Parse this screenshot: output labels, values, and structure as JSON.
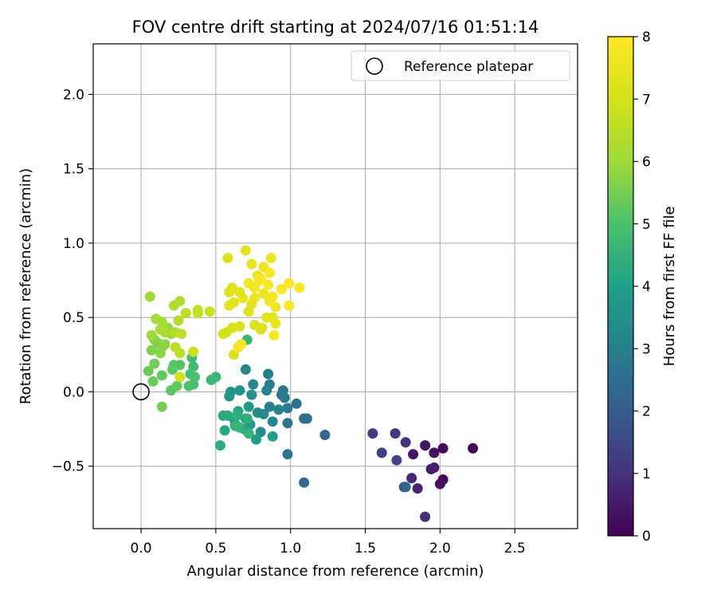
{
  "chart_data": {
    "type": "scatter",
    "title": "FOV centre drift starting at 2024/07/16 01:51:14",
    "xlabel": "Angular distance from reference (arcmin)",
    "ylabel": "Rotation from reference (arcmin)",
    "xlim": [
      -0.32,
      2.92
    ],
    "ylim": [
      -0.92,
      2.34
    ],
    "xticks": [
      0.0,
      0.5,
      1.0,
      1.5,
      2.0,
      2.5
    ],
    "xtick_labels": [
      "0.0",
      "0.5",
      "1.0",
      "1.5",
      "2.0",
      "2.5"
    ],
    "yticks": [
      -0.5,
      0.0,
      0.5,
      1.0,
      1.5,
      2.0
    ],
    "ytick_labels": [
      "−0.5",
      "0.0",
      "0.5",
      "1.0",
      "1.5",
      "2.0"
    ],
    "grid": true,
    "legend": {
      "placement": "top-right",
      "entries": [
        "Reference platepar"
      ]
    },
    "reference_point": {
      "x": 0.0,
      "y": 0.0,
      "marker": "open-circle"
    },
    "colorbar": {
      "label": "Hours from first FF file",
      "colormap": "viridis",
      "range": [
        0,
        8
      ],
      "ticks": [
        0,
        1,
        2,
        3,
        4,
        5,
        6,
        7,
        8
      ],
      "tick_labels": [
        "0",
        "1",
        "2",
        "3",
        "4",
        "5",
        "6",
        "7",
        "8"
      ]
    },
    "points": [
      {
        "x": 2.22,
        "y": -0.38,
        "h": 0.1
      },
      {
        "x": 2.02,
        "y": -0.38,
        "h": 0.2
      },
      {
        "x": 1.96,
        "y": -0.41,
        "h": 0.3
      },
      {
        "x": 1.9,
        "y": -0.36,
        "h": 0.4
      },
      {
        "x": 2.02,
        "y": -0.59,
        "h": 0.2
      },
      {
        "x": 2.0,
        "y": -0.62,
        "h": 0.3
      },
      {
        "x": 1.96,
        "y": -0.51,
        "h": 0.5
      },
      {
        "x": 1.94,
        "y": -0.52,
        "h": 0.6
      },
      {
        "x": 1.82,
        "y": -0.42,
        "h": 0.4
      },
      {
        "x": 1.85,
        "y": -0.65,
        "h": 0.7
      },
      {
        "x": 1.81,
        "y": -0.58,
        "h": 0.8
      },
      {
        "x": 1.9,
        "y": -0.84,
        "h": 0.9
      },
      {
        "x": 1.77,
        "y": -0.34,
        "h": 1.0
      },
      {
        "x": 1.7,
        "y": -0.28,
        "h": 1.1
      },
      {
        "x": 1.55,
        "y": -0.28,
        "h": 1.2
      },
      {
        "x": 1.61,
        "y": -0.41,
        "h": 1.3
      },
      {
        "x": 1.71,
        "y": -0.46,
        "h": 1.4
      },
      {
        "x": 1.76,
        "y": -0.64,
        "h": 1.5
      },
      {
        "x": 1.77,
        "y": -0.64,
        "h": 2.3
      },
      {
        "x": 1.23,
        "y": -0.29,
        "h": 2.3
      },
      {
        "x": 1.09,
        "y": -0.61,
        "h": 2.4
      },
      {
        "x": 1.11,
        "y": -0.18,
        "h": 2.5
      },
      {
        "x": 1.09,
        "y": -0.18,
        "h": 2.6
      },
      {
        "x": 1.04,
        "y": -0.08,
        "h": 2.6
      },
      {
        "x": 0.98,
        "y": -0.21,
        "h": 2.7
      },
      {
        "x": 0.98,
        "y": -0.42,
        "h": 2.7
      },
      {
        "x": 0.94,
        "y": -0.02,
        "h": 2.8
      },
      {
        "x": 0.95,
        "y": 0.01,
        "h": 2.8
      },
      {
        "x": 0.96,
        "y": -0.04,
        "h": 2.9
      },
      {
        "x": 0.98,
        "y": -0.11,
        "h": 2.9
      },
      {
        "x": 0.85,
        "y": 0.12,
        "h": 3.0
      },
      {
        "x": 0.86,
        "y": 0.05,
        "h": 3.0
      },
      {
        "x": 0.86,
        "y": -0.1,
        "h": 3.1
      },
      {
        "x": 0.84,
        "y": 0.01,
        "h": 3.1
      },
      {
        "x": 0.92,
        "y": -0.12,
        "h": 3.2
      },
      {
        "x": 0.88,
        "y": -0.2,
        "h": 3.2
      },
      {
        "x": 0.75,
        "y": 0.05,
        "h": 3.3
      },
      {
        "x": 0.7,
        "y": 0.15,
        "h": 3.3
      },
      {
        "x": 0.78,
        "y": -0.14,
        "h": 3.4
      },
      {
        "x": 0.82,
        "y": -0.15,
        "h": 3.4
      },
      {
        "x": 0.8,
        "y": -0.27,
        "h": 3.5
      },
      {
        "x": 0.74,
        "y": -0.02,
        "h": 3.5
      },
      {
        "x": 0.66,
        "y": 0.01,
        "h": 3.6
      },
      {
        "x": 0.6,
        "y": 0.0,
        "h": 3.6
      },
      {
        "x": 0.59,
        "y": -0.03,
        "h": 3.7
      },
      {
        "x": 0.72,
        "y": -0.1,
        "h": 3.7
      },
      {
        "x": 0.7,
        "y": -0.18,
        "h": 3.8
      },
      {
        "x": 0.73,
        "y": -0.22,
        "h": 3.8
      },
      {
        "x": 0.77,
        "y": -0.32,
        "h": 3.9
      },
      {
        "x": 0.88,
        "y": -0.3,
        "h": 3.9
      },
      {
        "x": 0.62,
        "y": -0.18,
        "h": 4.0
      },
      {
        "x": 0.63,
        "y": -0.22,
        "h": 4.0
      },
      {
        "x": 0.65,
        "y": -0.13,
        "h": 4.1
      },
      {
        "x": 0.69,
        "y": -0.25,
        "h": 4.1
      },
      {
        "x": 0.55,
        "y": -0.16,
        "h": 4.2
      },
      {
        "x": 0.56,
        "y": -0.26,
        "h": 4.2
      },
      {
        "x": 0.53,
        "y": -0.36,
        "h": 4.3
      },
      {
        "x": 0.58,
        "y": -0.16,
        "h": 4.3
      },
      {
        "x": 0.64,
        "y": -0.16,
        "h": 4.4
      },
      {
        "x": 0.71,
        "y": -0.18,
        "h": 4.4
      },
      {
        "x": 0.66,
        "y": -0.24,
        "h": 4.5
      },
      {
        "x": 0.72,
        "y": -0.28,
        "h": 4.5
      },
      {
        "x": 0.63,
        "y": -0.23,
        "h": 4.6
      },
      {
        "x": 0.71,
        "y": 0.35,
        "h": 4.6
      },
      {
        "x": 0.5,
        "y": 0.1,
        "h": 4.7
      },
      {
        "x": 0.47,
        "y": 0.08,
        "h": 4.7
      },
      {
        "x": 0.34,
        "y": 0.23,
        "h": 4.8
      },
      {
        "x": 0.35,
        "y": 0.17,
        "h": 4.8
      },
      {
        "x": 0.33,
        "y": 0.12,
        "h": 4.9
      },
      {
        "x": 0.35,
        "y": 0.05,
        "h": 4.9
      },
      {
        "x": 0.32,
        "y": 0.04,
        "h": 5.0
      },
      {
        "x": 0.36,
        "y": 0.1,
        "h": 5.0
      },
      {
        "x": 0.26,
        "y": 0.18,
        "h": 5.1
      },
      {
        "x": 0.22,
        "y": 0.18,
        "h": 5.1
      },
      {
        "x": 0.21,
        "y": 0.15,
        "h": 5.2
      },
      {
        "x": 0.2,
        "y": 0.01,
        "h": 5.2
      },
      {
        "x": 0.24,
        "y": 0.04,
        "h": 5.3
      },
      {
        "x": 0.14,
        "y": 0.11,
        "h": 5.3
      },
      {
        "x": 0.08,
        "y": 0.07,
        "h": 5.4
      },
      {
        "x": 0.05,
        "y": 0.14,
        "h": 5.4
      },
      {
        "x": 0.14,
        "y": -0.1,
        "h": 5.5
      },
      {
        "x": 0.09,
        "y": 0.19,
        "h": 5.5
      },
      {
        "x": 0.07,
        "y": 0.28,
        "h": 5.6
      },
      {
        "x": 0.11,
        "y": 0.33,
        "h": 5.6
      },
      {
        "x": 0.09,
        "y": 0.35,
        "h": 5.7
      },
      {
        "x": 0.14,
        "y": 0.3,
        "h": 5.7
      },
      {
        "x": 0.16,
        "y": 0.32,
        "h": 5.8
      },
      {
        "x": 0.13,
        "y": 0.26,
        "h": 5.8
      },
      {
        "x": 0.18,
        "y": 0.43,
        "h": 5.9
      },
      {
        "x": 0.2,
        "y": 0.39,
        "h": 5.9
      },
      {
        "x": 0.07,
        "y": 0.38,
        "h": 6.0
      },
      {
        "x": 0.06,
        "y": 0.64,
        "h": 6.0
      },
      {
        "x": 0.1,
        "y": 0.49,
        "h": 6.1
      },
      {
        "x": 0.14,
        "y": 0.47,
        "h": 6.1
      },
      {
        "x": 0.13,
        "y": 0.42,
        "h": 6.2
      },
      {
        "x": 0.16,
        "y": 0.4,
        "h": 6.2
      },
      {
        "x": 0.22,
        "y": 0.58,
        "h": 6.3
      },
      {
        "x": 0.26,
        "y": 0.61,
        "h": 6.3
      },
      {
        "x": 0.25,
        "y": 0.48,
        "h": 6.4
      },
      {
        "x": 0.23,
        "y": 0.4,
        "h": 6.4
      },
      {
        "x": 0.27,
        "y": 0.39,
        "h": 6.5
      },
      {
        "x": 0.23,
        "y": 0.3,
        "h": 6.5
      },
      {
        "x": 0.26,
        "y": 0.26,
        "h": 6.6
      },
      {
        "x": 0.3,
        "y": 0.53,
        "h": 6.6
      },
      {
        "x": 0.38,
        "y": 0.55,
        "h": 6.7
      },
      {
        "x": 0.38,
        "y": 0.53,
        "h": 6.7
      },
      {
        "x": 0.46,
        "y": 0.54,
        "h": 6.8
      },
      {
        "x": 0.35,
        "y": 0.27,
        "h": 6.8
      },
      {
        "x": 0.26,
        "y": 0.1,
        "h": 6.9
      },
      {
        "x": 0.55,
        "y": 0.39,
        "h": 6.9
      },
      {
        "x": 0.57,
        "y": 0.4,
        "h": 7.0
      },
      {
        "x": 0.61,
        "y": 0.43,
        "h": 7.0
      },
      {
        "x": 0.66,
        "y": 0.44,
        "h": 7.1
      },
      {
        "x": 0.62,
        "y": 0.25,
        "h": 7.1
      },
      {
        "x": 0.58,
        "y": 0.9,
        "h": 7.2
      },
      {
        "x": 0.59,
        "y": 0.67,
        "h": 7.2
      },
      {
        "x": 0.61,
        "y": 0.7,
        "h": 7.3
      },
      {
        "x": 0.62,
        "y": 0.6,
        "h": 7.3
      },
      {
        "x": 0.59,
        "y": 0.58,
        "h": 7.4
      },
      {
        "x": 0.7,
        "y": 0.95,
        "h": 7.4
      },
      {
        "x": 0.74,
        "y": 0.86,
        "h": 7.5
      },
      {
        "x": 0.78,
        "y": 0.78,
        "h": 7.5
      },
      {
        "x": 0.82,
        "y": 0.84,
        "h": 7.6
      },
      {
        "x": 0.87,
        "y": 0.9,
        "h": 7.6
      },
      {
        "x": 0.72,
        "y": 0.73,
        "h": 7.7
      },
      {
        "x": 0.76,
        "y": 0.7,
        "h": 7.7
      },
      {
        "x": 0.79,
        "y": 0.75,
        "h": 7.8
      },
      {
        "x": 0.8,
        "y": 0.76,
        "h": 7.8
      },
      {
        "x": 0.86,
        "y": 0.8,
        "h": 7.9
      },
      {
        "x": 0.85,
        "y": 0.72,
        "h": 7.9
      },
      {
        "x": 0.82,
        "y": 0.66,
        "h": 7.5
      },
      {
        "x": 0.76,
        "y": 0.63,
        "h": 7.6
      },
      {
        "x": 0.74,
        "y": 0.59,
        "h": 7.4
      },
      {
        "x": 0.72,
        "y": 0.54,
        "h": 7.3
      },
      {
        "x": 0.76,
        "y": 0.45,
        "h": 7.2
      },
      {
        "x": 0.8,
        "y": 0.42,
        "h": 7.1
      },
      {
        "x": 0.81,
        "y": 0.43,
        "h": 7.2
      },
      {
        "x": 0.84,
        "y": 0.5,
        "h": 7.3
      },
      {
        "x": 0.88,
        "y": 0.5,
        "h": 7.4
      },
      {
        "x": 0.9,
        "y": 0.46,
        "h": 7.5
      },
      {
        "x": 0.89,
        "y": 0.38,
        "h": 7.9
      },
      {
        "x": 0.9,
        "y": 0.57,
        "h": 7.6
      },
      {
        "x": 0.86,
        "y": 0.61,
        "h": 7.7
      },
      {
        "x": 0.88,
        "y": 0.64,
        "h": 7.8
      },
      {
        "x": 0.94,
        "y": 0.69,
        "h": 7.9
      },
      {
        "x": 0.99,
        "y": 0.73,
        "h": 8.0
      },
      {
        "x": 1.06,
        "y": 0.7,
        "h": 8.0
      },
      {
        "x": 0.99,
        "y": 0.58,
        "h": 8.0
      },
      {
        "x": 0.67,
        "y": 0.32,
        "h": 7.7
      },
      {
        "x": 0.65,
        "y": 0.3,
        "h": 7.8
      },
      {
        "x": 0.68,
        "y": 0.63,
        "h": 7.5
      },
      {
        "x": 0.66,
        "y": 0.67,
        "h": 7.4
      }
    ]
  }
}
